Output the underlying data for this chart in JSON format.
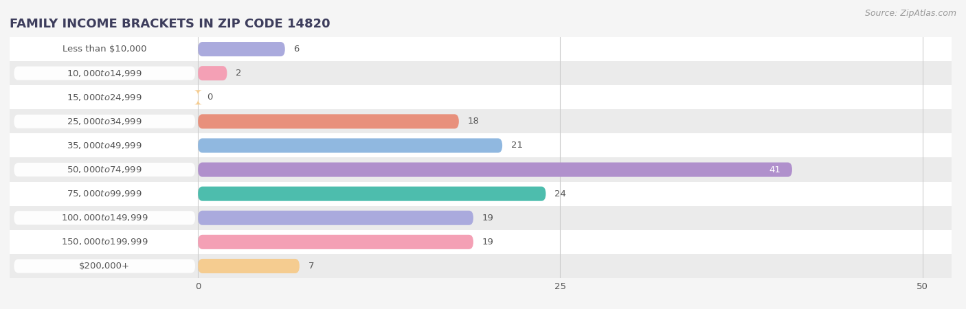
{
  "title": "FAMILY INCOME BRACKETS IN ZIP CODE 14820",
  "source": "Source: ZipAtlas.com",
  "categories": [
    "Less than $10,000",
    "$10,000 to $14,999",
    "$15,000 to $24,999",
    "$25,000 to $34,999",
    "$35,000 to $49,999",
    "$50,000 to $74,999",
    "$75,000 to $99,999",
    "$100,000 to $149,999",
    "$150,000 to $199,999",
    "$200,000+"
  ],
  "values": [
    6,
    2,
    0,
    18,
    21,
    41,
    24,
    19,
    19,
    7
  ],
  "bar_colors": [
    "#aaaadd",
    "#f4a0b5",
    "#f5cc90",
    "#e8907c",
    "#90b8e0",
    "#b090cc",
    "#4dbdad",
    "#aaaadd",
    "#f4a0b5",
    "#f5cc90"
  ],
  "xlim": [
    -13,
    52
  ],
  "xmax": 50,
  "xticks": [
    0,
    25,
    50
  ],
  "bar_height": 0.6,
  "background_color": "#f5f5f5",
  "row_bg_even": "#ffffff",
  "row_bg_odd": "#ebebeb",
  "label_pill_color": "#ffffff",
  "label_text_color": "#555555",
  "value_color_inside": "#ffffff",
  "value_color_outside": "#555555",
  "title_fontsize": 13,
  "label_fontsize": 9.5,
  "value_fontsize": 9.5,
  "source_fontsize": 9,
  "title_color": "#3d3d5c",
  "grid_color": "#cccccc"
}
